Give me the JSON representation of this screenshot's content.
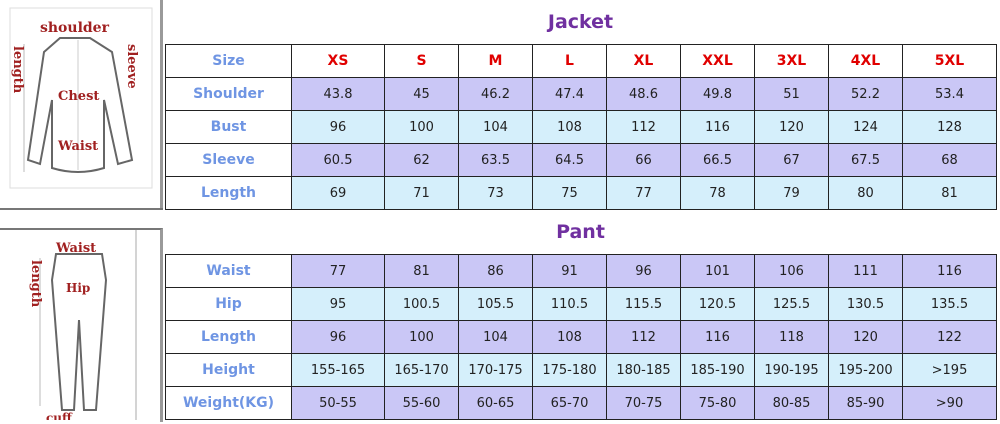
{
  "illustrations": {
    "jacket_labels": {
      "shoulder": "shoulder",
      "length": "length",
      "sleeve": "sleeve",
      "chest": "Chest",
      "waist": "Waist"
    },
    "pant_labels": {
      "waist": "Waist",
      "length": "length",
      "hip": "Hip",
      "cuff": "cuff"
    }
  },
  "jacket": {
    "title": "Jacket",
    "header_label": "Size",
    "sizes": [
      "XS",
      "S",
      "M",
      "L",
      "XL",
      "XXL",
      "3XL",
      "4XL",
      "5XL"
    ],
    "rows": [
      {
        "label": "Shoulder",
        "values": [
          "43.8",
          "45",
          "46.2",
          "47.4",
          "48.6",
          "49.8",
          "51",
          "52.2",
          "53.4"
        ]
      },
      {
        "label": "Bust",
        "values": [
          "96",
          "100",
          "104",
          "108",
          "112",
          "116",
          "120",
          "124",
          "128"
        ]
      },
      {
        "label": "Sleeve",
        "values": [
          "60.5",
          "62",
          "63.5",
          "64.5",
          "66",
          "66.5",
          "67",
          "67.5",
          "68"
        ]
      },
      {
        "label": "Length",
        "values": [
          "69",
          "71",
          "73",
          "75",
          "77",
          "78",
          "79",
          "80",
          "81"
        ]
      }
    ]
  },
  "pant": {
    "title": "Pant",
    "rows": [
      {
        "label": "Waist",
        "values": [
          "77",
          "81",
          "86",
          "91",
          "96",
          "101",
          "106",
          "111",
          "116"
        ]
      },
      {
        "label": "Hip",
        "values": [
          "95",
          "100.5",
          "105.5",
          "110.5",
          "115.5",
          "120.5",
          "125.5",
          "130.5",
          "135.5"
        ]
      },
      {
        "label": "Length",
        "values": [
          "96",
          "100",
          "104",
          "108",
          "112",
          "116",
          "118",
          "120",
          "122"
        ]
      },
      {
        "label": "Height",
        "values": [
          "155-165",
          "165-170",
          "170-175",
          "175-180",
          "180-185",
          "185-190",
          "190-195",
          "195-200",
          ">195"
        ]
      },
      {
        "label": "Weight(KG)",
        "values": [
          "50-55",
          "55-60",
          "60-65",
          "65-70",
          "70-75",
          "75-80",
          "80-85",
          "85-90",
          ">90"
        ]
      }
    ]
  },
  "colors": {
    "title": "#7030a0",
    "row_label": "#6f95e3",
    "size_header": "#e00000",
    "row_purple": "#cac7f6",
    "row_blue": "#d5effb"
  }
}
